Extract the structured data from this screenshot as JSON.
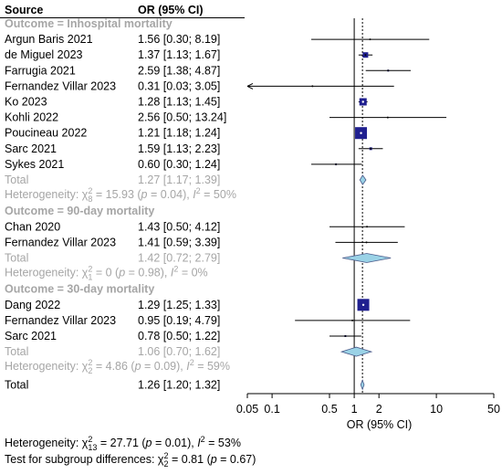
{
  "chart_data": {
    "type": "forest",
    "header": {
      "source": "Source",
      "effect": "OR (95% CI)"
    },
    "xlabel": "OR (95% CI)",
    "x_scale": "log",
    "xlim": [
      0.05,
      50
    ],
    "xticks": [
      {
        "value": 0.05,
        "label": "0.05"
      },
      {
        "value": 0.1,
        "label": "0.1"
      },
      {
        "value": 0.5,
        "label": "0.5"
      },
      {
        "value": 1,
        "label": "1"
      },
      {
        "value": 2,
        "label": "2"
      },
      {
        "value": 10,
        "label": "10"
      },
      {
        "value": 50,
        "label": "50"
      }
    ],
    "null_value": 1,
    "overall_reference": 1.26,
    "colors": {
      "square": "#1f1f8f",
      "diamond": "#9ad2e6",
      "diamond_edge": "#4a5a8a",
      "grey_text": "#a6a6a6"
    },
    "groups": [
      {
        "label": "Outcome = Inhospital mortality",
        "studies": [
          {
            "name": "Argun Baris 2021",
            "text": "1.56 [0.30;  8.19]",
            "or": 1.56,
            "lo": 0.3,
            "hi": 8.19,
            "size": 0
          },
          {
            "name": "de Miguel 2023",
            "text": "1.37 [1.13;  1.67]",
            "or": 1.37,
            "lo": 1.13,
            "hi": 1.67,
            "size": 6
          },
          {
            "name": "Farrugia 2021",
            "text": "2.59 [1.38;  4.87]",
            "or": 2.59,
            "lo": 1.38,
            "hi": 4.87,
            "size": 2
          },
          {
            "name": "Fernandez Villar 2023",
            "text": "0.31 [0.03;  3.05]",
            "or": 0.31,
            "lo": 0.03,
            "hi": 3.05,
            "size": 0,
            "arrow_left": true
          },
          {
            "name": "Ko 2023",
            "text": "1.28 [1.13;  1.45]",
            "or": 1.28,
            "lo": 1.13,
            "hi": 1.45,
            "size": 8
          },
          {
            "name": "Kohli 2022",
            "text": "2.56 [0.50; 13.24]",
            "or": 2.56,
            "lo": 0.5,
            "hi": 13.24,
            "size": 0
          },
          {
            "name": "Poucineau 2022",
            "text": "1.21 [1.18;  1.24]",
            "or": 1.21,
            "lo": 1.18,
            "hi": 1.24,
            "size": 13
          },
          {
            "name": "Sarc 2021",
            "text": "1.59 [1.13;  2.23]",
            "or": 1.59,
            "lo": 1.13,
            "hi": 2.23,
            "size": 3
          },
          {
            "name": "Sykes 2021",
            "text": "0.60 [0.30;  1.24]",
            "or": 0.6,
            "lo": 0.3,
            "hi": 1.24,
            "size": 2
          }
        ],
        "total": {
          "name": "Total",
          "text": "1.27 [1.17;  1.39]",
          "or": 1.27,
          "lo": 1.17,
          "hi": 1.39
        },
        "heterogeneity": {
          "prefix": "Heterogeneity: ",
          "chi": "χ",
          "sub": "8",
          "sup": "2",
          "rest": " = 15.93 (",
          "p": "p",
          "prest": " = 0.04), ",
          "i": "I",
          "isup": "2",
          "irest": " = 50%"
        }
      },
      {
        "label": "Outcome = 90-day mortality",
        "studies": [
          {
            "name": "Chan 2020",
            "text": "1.43 [0.50;  4.12]",
            "or": 1.43,
            "lo": 0.5,
            "hi": 4.12,
            "size": 0
          },
          {
            "name": "Fernandez Villar 2023",
            "text": "1.41 [0.59;  3.39]",
            "or": 1.41,
            "lo": 0.59,
            "hi": 3.39,
            "size": 0
          }
        ],
        "total": {
          "name": "Total",
          "text": "1.42 [0.72;  2.79]",
          "or": 1.42,
          "lo": 0.72,
          "hi": 2.79
        },
        "heterogeneity": {
          "prefix": "Heterogeneity: ",
          "chi": "χ",
          "sub": "1",
          "sup": "2",
          "rest": " = 0 (",
          "p": "p",
          "prest": " = 0.98), ",
          "i": "I",
          "isup": "2",
          "irest": " = 0%"
        }
      },
      {
        "label": "Outcome = 30-day mortality",
        "studies": [
          {
            "name": "Dang 2022",
            "text": "1.29 [1.25;  1.33]",
            "or": 1.29,
            "lo": 1.25,
            "hi": 1.33,
            "size": 13
          },
          {
            "name": "Fernandez Villar 2023",
            "text": "0.95 [0.19;  4.79]",
            "or": 0.95,
            "lo": 0.19,
            "hi": 4.79,
            "size": 0
          },
          {
            "name": "Sarc 2021",
            "text": "0.78 [0.50;  1.22]",
            "or": 0.78,
            "lo": 0.5,
            "hi": 1.22,
            "size": 2
          }
        ],
        "total": {
          "name": "Total",
          "text": "1.06 [0.70;  1.62]",
          "or": 1.06,
          "lo": 0.7,
          "hi": 1.62
        },
        "heterogeneity": {
          "prefix": "Heterogeneity: ",
          "chi": "χ",
          "sub": "2",
          "sup": "2",
          "rest": " = 4.86 (",
          "p": "p",
          "prest": " = 0.09), ",
          "i": "I",
          "isup": "2",
          "irest": " = 59%"
        }
      }
    ],
    "overall": {
      "name": "Total",
      "text": "1.26 [1.20;  1.32]",
      "or": 1.26,
      "lo": 1.2,
      "hi": 1.32
    },
    "footer": [
      {
        "prefix": "Heterogeneity: ",
        "chi": "χ",
        "sub": "13",
        "sup": "2",
        "rest": " = 27.71 (",
        "p": "p",
        "prest": " = 0.01), ",
        "i": "I",
        "isup": "2",
        "irest": " = 53%"
      },
      {
        "prefix": "Test for subgroup differences: ",
        "chi": "χ",
        "sub": "2",
        "sup": "2",
        "rest": " = 0.81 (",
        "p": "p",
        "prest": " = 0.67)"
      }
    ]
  }
}
